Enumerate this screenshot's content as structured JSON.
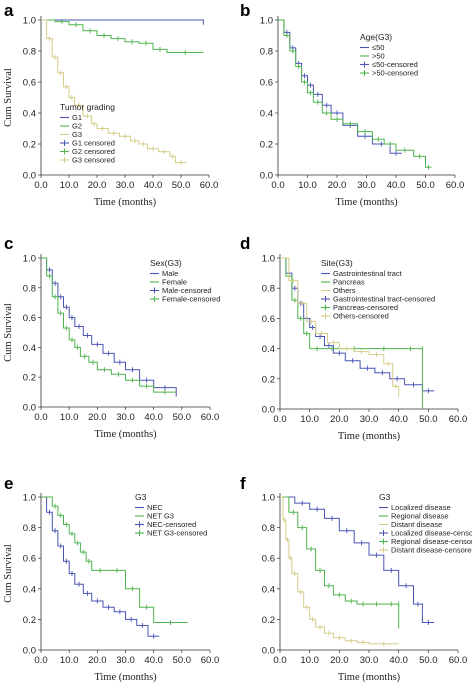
{
  "chart_data": [
    {
      "panel": "a",
      "type": "line",
      "title": "",
      "xlabel": "Time (months)",
      "ylabel": "Cum Survival",
      "xlim": [
        0,
        60
      ],
      "ylim": [
        0,
        1
      ],
      "xticks": [
        "0.0",
        "10.0",
        "20.0",
        "30.0",
        "40.0",
        "50.0",
        "60.0"
      ],
      "yticks": [
        "0.0",
        "0.2",
        "0.4",
        "0.6",
        "0.8",
        "1.0"
      ],
      "legend_title": "Tumor grading",
      "legend_position": "bottom-left",
      "legend_entries": [
        "G1",
        "G2",
        "G3",
        "G1 censored",
        "G2 censored",
        "G3 censored"
      ],
      "series": [
        {
          "name": "G1",
          "color": "#4a55b5",
          "x": [
            0,
            58
          ],
          "y": [
            1.0,
            0.97
          ]
        },
        {
          "name": "G2",
          "color": "#4fb34f",
          "x": [
            0,
            5,
            10,
            15,
            20,
            25,
            30,
            35,
            40,
            45,
            58
          ],
          "y": [
            1.0,
            0.99,
            0.97,
            0.93,
            0.9,
            0.88,
            0.86,
            0.85,
            0.81,
            0.79,
            0.79
          ]
        },
        {
          "name": "G3",
          "color": "#d4cc88",
          "x": [
            0,
            2,
            4,
            6,
            8,
            10,
            12,
            15,
            18,
            20,
            24,
            28,
            32,
            35,
            38,
            42,
            46,
            48,
            52
          ],
          "y": [
            1.0,
            0.88,
            0.76,
            0.66,
            0.57,
            0.5,
            0.45,
            0.38,
            0.33,
            0.3,
            0.27,
            0.25,
            0.22,
            0.2,
            0.17,
            0.15,
            0.12,
            0.08,
            0.08
          ]
        }
      ]
    },
    {
      "panel": "b",
      "type": "line",
      "title": "",
      "xlabel": "Time (months)",
      "ylabel": "",
      "xlim": [
        0,
        60
      ],
      "ylim": [
        0,
        1
      ],
      "xticks": [
        "0.0",
        "10.0",
        "20.0",
        "30.0",
        "40.0",
        "50.0",
        "60.0"
      ],
      "yticks": [
        "0.0",
        "0.2",
        "0.4",
        "0.6",
        "0.8",
        "1.0"
      ],
      "legend_title": "Age(G3)",
      "legend_position": "top-right",
      "legend_entries": [
        "≤50",
        ">50",
        "≤50-censored",
        ">50-censored"
      ],
      "series": [
        {
          "name": "≤50",
          "color": "#4a55b5",
          "x": [
            0,
            2,
            4,
            6,
            8,
            10,
            12,
            15,
            18,
            22,
            27,
            32,
            38,
            42
          ],
          "y": [
            1.0,
            0.92,
            0.82,
            0.72,
            0.64,
            0.58,
            0.52,
            0.45,
            0.4,
            0.32,
            0.25,
            0.2,
            0.14,
            0.14
          ]
        },
        {
          "name": ">50",
          "color": "#4fb34f",
          "x": [
            0,
            2,
            4,
            6,
            8,
            10,
            12,
            15,
            18,
            22,
            27,
            32,
            36,
            40,
            46,
            50,
            52
          ],
          "y": [
            1.0,
            0.9,
            0.8,
            0.7,
            0.6,
            0.53,
            0.47,
            0.4,
            0.36,
            0.33,
            0.28,
            0.23,
            0.2,
            0.16,
            0.12,
            0.05,
            0.05
          ]
        }
      ]
    },
    {
      "panel": "c",
      "type": "line",
      "title": "",
      "xlabel": "Time (months)",
      "ylabel": "Cum Survival",
      "xlim": [
        0,
        60
      ],
      "ylim": [
        0,
        1
      ],
      "xticks": [
        "0.0",
        "10.0",
        "20.0",
        "30.0",
        "40.0",
        "50.0",
        "60.0"
      ],
      "yticks": [
        "0.0",
        "0.2",
        "0.4",
        "0.6",
        "0.8",
        "1.0"
      ],
      "legend_title": "Sex(G3)",
      "legend_position": "top-right",
      "legend_entries": [
        "Male",
        "Female",
        "Male-censored",
        "Female-censored"
      ],
      "series": [
        {
          "name": "Male",
          "color": "#4a55b5",
          "x": [
            0,
            2,
            4,
            6,
            8,
            10,
            12,
            15,
            18,
            22,
            26,
            30,
            35,
            40,
            48
          ],
          "y": [
            1.0,
            0.92,
            0.83,
            0.74,
            0.67,
            0.6,
            0.54,
            0.48,
            0.42,
            0.36,
            0.3,
            0.25,
            0.18,
            0.13,
            0.07
          ]
        },
        {
          "name": "Female",
          "color": "#4fb34f",
          "x": [
            0,
            2,
            4,
            6,
            8,
            10,
            12,
            14,
            17,
            20,
            25,
            30,
            35,
            40,
            48
          ],
          "y": [
            1.0,
            0.88,
            0.74,
            0.63,
            0.53,
            0.45,
            0.4,
            0.34,
            0.3,
            0.25,
            0.22,
            0.18,
            0.14,
            0.1,
            0.1
          ]
        }
      ]
    },
    {
      "panel": "d",
      "type": "line",
      "title": "",
      "xlabel": "Time (months)",
      "ylabel": "",
      "xlim": [
        0,
        60
      ],
      "ylim": [
        0,
        1
      ],
      "xticks": [
        "0.0",
        "10.0",
        "20.0",
        "30.0",
        "40.0",
        "50.0",
        "60.0"
      ],
      "yticks": [
        "0.0",
        "0.2",
        "0.4",
        "0.6",
        "0.8",
        "1.0"
      ],
      "legend_title": "Site(G3)",
      "legend_position": "top-right",
      "legend_entries": [
        "Gastrointestinal tract",
        "Pancreas",
        "Others",
        "Gastrointestinal tract-censored",
        "Pancreas-censored",
        "Others-censored"
      ],
      "series": [
        {
          "name": "Gastrointestinal tract",
          "color": "#4a55b5",
          "x": [
            0,
            2,
            4,
            6,
            8,
            10,
            12,
            15,
            18,
            22,
            27,
            32,
            37,
            42,
            48,
            52
          ],
          "y": [
            1.0,
            0.9,
            0.8,
            0.7,
            0.6,
            0.54,
            0.48,
            0.42,
            0.37,
            0.32,
            0.27,
            0.24,
            0.2,
            0.16,
            0.12,
            0.12
          ]
        },
        {
          "name": "Pancreas",
          "color": "#4fb34f",
          "x": [
            0,
            2,
            4,
            6,
            8,
            10,
            15,
            20,
            30,
            40,
            48,
            48
          ],
          "y": [
            1.0,
            0.88,
            0.72,
            0.6,
            0.5,
            0.4,
            0.4,
            0.4,
            0.4,
            0.4,
            0.4,
            0.0
          ]
        },
        {
          "name": "Others",
          "color": "#d4cc88",
          "x": [
            0,
            3,
            6,
            9,
            12,
            16,
            20,
            25,
            30,
            35,
            38,
            40
          ],
          "y": [
            1.0,
            0.85,
            0.7,
            0.58,
            0.5,
            0.44,
            0.4,
            0.38,
            0.36,
            0.3,
            0.15,
            0.08
          ]
        }
      ]
    },
    {
      "panel": "e",
      "type": "line",
      "title": "",
      "xlabel": "Time (months)",
      "ylabel": "Cum Survival",
      "xlim": [
        0,
        60
      ],
      "ylim": [
        0,
        1
      ],
      "xticks": [
        "0.0",
        "10.0",
        "20.0",
        "30.0",
        "40.0",
        "50.0",
        "60.0"
      ],
      "yticks": [
        "0.0",
        "0.2",
        "0.4",
        "0.6",
        "0.8",
        "1.0"
      ],
      "legend_title": "G3",
      "legend_position": "top-right",
      "legend_entries": [
        "NEC",
        "NET G3",
        "NEC-censored",
        "NET G3-censored"
      ],
      "series": [
        {
          "name": "NEC",
          "color": "#4a55b5",
          "x": [
            0,
            2,
            4,
            6,
            8,
            10,
            12,
            15,
            18,
            22,
            26,
            30,
            34,
            38,
            42
          ],
          "y": [
            1.0,
            0.9,
            0.78,
            0.68,
            0.58,
            0.5,
            0.43,
            0.37,
            0.32,
            0.28,
            0.25,
            0.2,
            0.16,
            0.09,
            0.09
          ]
        },
        {
          "name": "NET G3",
          "color": "#4fb34f",
          "x": [
            0,
            4,
            6,
            8,
            10,
            12,
            14,
            16,
            18,
            24,
            30,
            35,
            40,
            52
          ],
          "y": [
            1.0,
            0.94,
            0.88,
            0.82,
            0.76,
            0.7,
            0.64,
            0.58,
            0.52,
            0.52,
            0.4,
            0.28,
            0.18,
            0.18
          ]
        }
      ]
    },
    {
      "panel": "f",
      "type": "line",
      "title": "",
      "xlabel": "Time (months)",
      "ylabel": "",
      "xlim": [
        0,
        60
      ],
      "ylim": [
        0,
        1
      ],
      "xticks": [
        "0.0",
        "10.0",
        "20.0",
        "30.0",
        "40.0",
        "50.0",
        "60.0"
      ],
      "yticks": [
        "0.0",
        "0.2",
        "0.4",
        "0.6",
        "0.8",
        "1.0"
      ],
      "legend_title": "G3",
      "legend_position": "top-right",
      "legend_entries": [
        "Localized disease",
        "Regional disease",
        "Distant disease",
        "Localized disease-censored",
        "Regional disease-censored",
        "Distant disease-censored"
      ],
      "series": [
        {
          "name": "Localized disease",
          "color": "#4a55b5",
          "x": [
            0,
            5,
            10,
            15,
            20,
            25,
            30,
            35,
            40,
            45,
            48,
            52
          ],
          "y": [
            1.0,
            0.96,
            0.92,
            0.86,
            0.78,
            0.7,
            0.62,
            0.52,
            0.42,
            0.3,
            0.18,
            0.18
          ]
        },
        {
          "name": "Regional disease",
          "color": "#4fb34f",
          "x": [
            0,
            3,
            6,
            9,
            12,
            15,
            18,
            22,
            26,
            30,
            35,
            40,
            40
          ],
          "y": [
            1.0,
            0.9,
            0.8,
            0.66,
            0.52,
            0.42,
            0.36,
            0.32,
            0.3,
            0.3,
            0.3,
            0.3,
            0.14
          ]
        },
        {
          "name": "Distant disease",
          "color": "#d4cc88",
          "x": [
            0,
            1,
            2,
            3,
            4,
            6,
            8,
            10,
            12,
            15,
            18,
            22,
            26,
            30,
            40
          ],
          "y": [
            1.0,
            0.85,
            0.72,
            0.6,
            0.5,
            0.38,
            0.28,
            0.2,
            0.15,
            0.11,
            0.08,
            0.06,
            0.05,
            0.04,
            0.04
          ]
        }
      ]
    }
  ]
}
